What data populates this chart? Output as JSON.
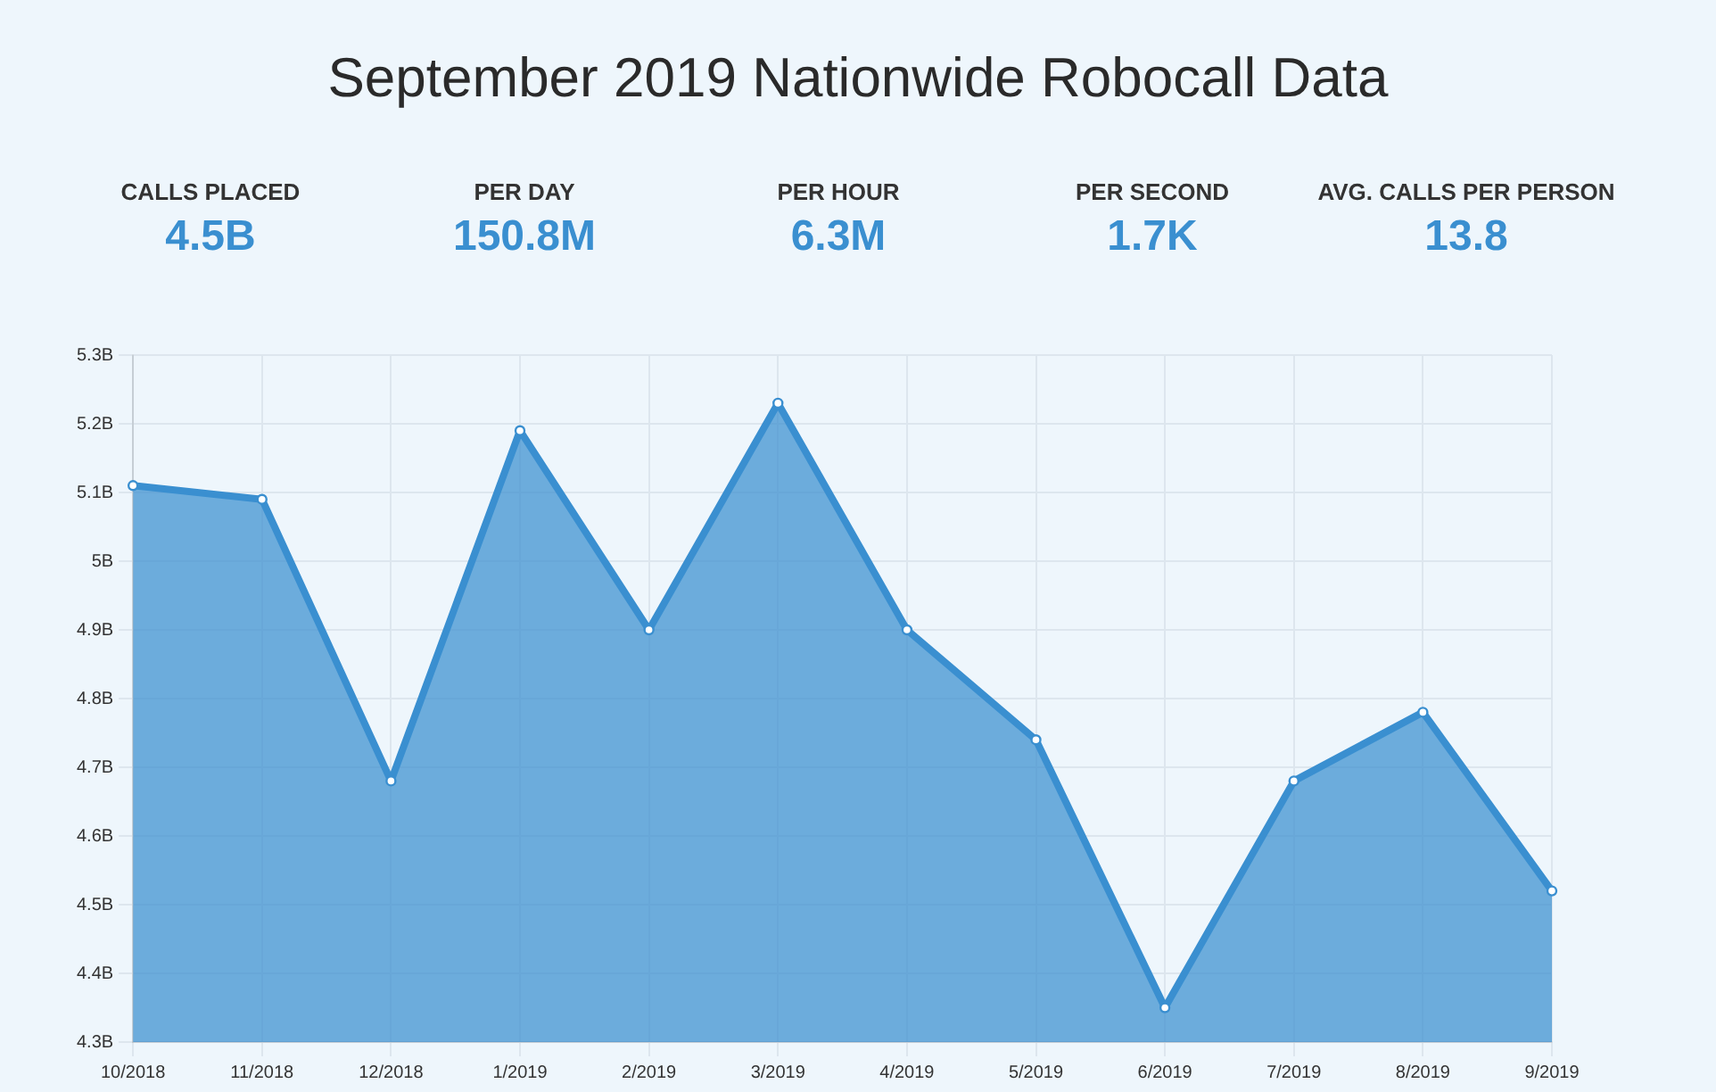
{
  "chart_data": {
    "type": "area",
    "title": "September 2019 Nationwide Robocall Data",
    "annotations": [
      "CALLS PLACED",
      "4.5B",
      "PER DAY",
      "150.8M",
      "PER HOUR",
      "6.3M",
      "PER SECOND",
      "1.7K",
      "AVG. CALLS PER PERSON",
      "13.8"
    ],
    "categories": [
      "10/2018",
      "11/2018",
      "12/2018",
      "1/2019",
      "2/2019",
      "3/2019",
      "4/2019",
      "5/2019",
      "6/2019",
      "7/2019",
      "8/2019",
      "9/2019"
    ],
    "series": [
      {
        "color": "#3a8fd0",
        "values": [
          5.11,
          5.09,
          4.68,
          5.19,
          4.9,
          5.23,
          4.9,
          4.74,
          4.35,
          4.68,
          4.78,
          4.52
        ]
      }
    ],
    "ylim": [
      4.3,
      5.3
    ],
    "yticks": [
      {
        "value": 4.3,
        "label": "4.3B"
      },
      {
        "value": 4.4,
        "label": "4.4B"
      },
      {
        "value": 4.5,
        "label": "4.5B"
      },
      {
        "value": 4.6,
        "label": "4.6B"
      },
      {
        "value": 4.7,
        "label": "4.7B"
      },
      {
        "value": 4.8,
        "label": "4.8B"
      },
      {
        "value": 4.9,
        "label": "4.9B"
      },
      {
        "value": 5,
        "label": "5B"
      },
      {
        "value": 5.1,
        "label": "5.1B"
      },
      {
        "value": 5.2,
        "label": "5.2B"
      },
      {
        "value": 5.3,
        "label": "5.3B"
      }
    ],
    "grid": true,
    "legend": false,
    "marker": "circle"
  }
}
